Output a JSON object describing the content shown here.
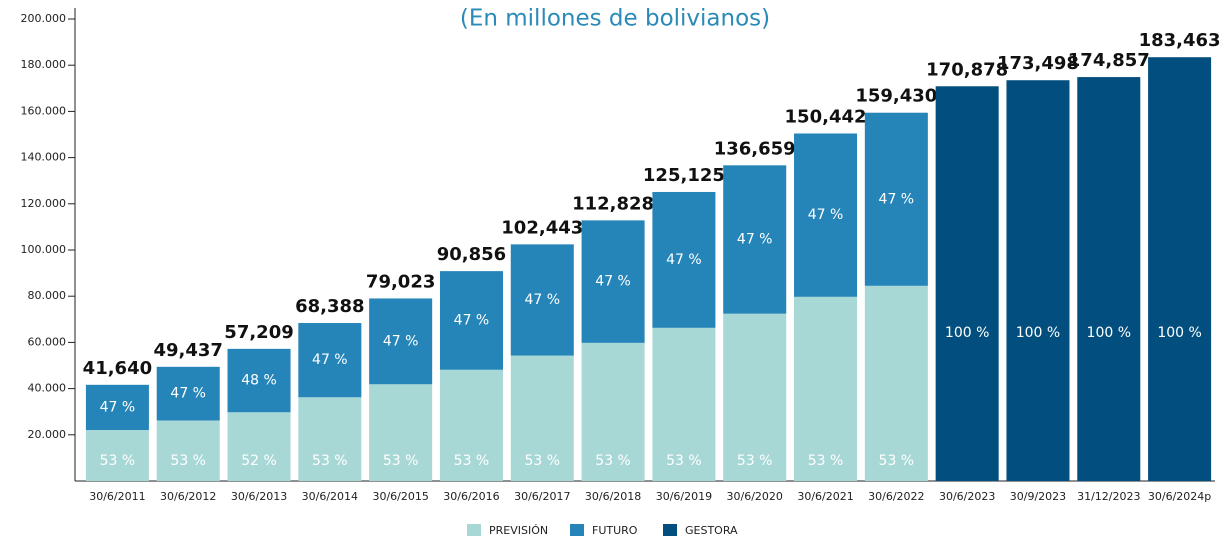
{
  "chart_data": {
    "type": "stacked_bar",
    "subtitle": "(En millones de bolivianos)",
    "categories": [
      "30/6/2011",
      "30/6/2012",
      "30/6/2013",
      "30/6/2014",
      "30/6/2015",
      "30/6/2016",
      "30/6/2017",
      "30/6/2018",
      "30/6/2019",
      "30/6/2020",
      "30/6/2021",
      "30/6/2022",
      "30/6/2023",
      "30/9/2023",
      "31/12/2023",
      "30/6/2024p"
    ],
    "series": [
      {
        "name": "PREVISIÓN",
        "color": "#a8d8d6",
        "values": [
          22069,
          26202,
          29749,
          36246,
          41882,
          48154,
          54295,
          59799,
          66316,
          72429,
          79734,
          84498,
          null,
          null,
          null,
          null
        ],
        "share_labels": [
          "53 %",
          "53 %",
          "52 %",
          "53 %",
          "53 %",
          "53 %",
          "53 %",
          "53 %",
          "53 %",
          "53 %",
          "53 %",
          "53 %",
          null,
          null,
          null,
          null
        ]
      },
      {
        "name": "FUTURO",
        "color": "#2585b8",
        "values": [
          19571,
          23235,
          27460,
          32142,
          37141,
          42702,
          48148,
          53029,
          58809,
          64230,
          70708,
          74932,
          null,
          null,
          null,
          null
        ],
        "share_labels": [
          "47 %",
          "47 %",
          "48 %",
          "47 %",
          "47 %",
          "47 %",
          "47 %",
          "47 %",
          "47 %",
          "47 %",
          "47 %",
          "47 %",
          null,
          null,
          null,
          null
        ]
      },
      {
        "name": "GESTORA",
        "color": "#024f7f",
        "values": [
          null,
          null,
          null,
          null,
          null,
          null,
          null,
          null,
          null,
          null,
          null,
          null,
          170878,
          173498,
          174857,
          183463
        ],
        "share_labels": [
          null,
          null,
          null,
          null,
          null,
          null,
          null,
          null,
          null,
          null,
          null,
          null,
          "100 %",
          "100 %",
          "100 %",
          "100 %"
        ]
      }
    ],
    "totals": [
      41640,
      49437,
      57209,
      68388,
      79023,
      90856,
      102443,
      112828,
      125125,
      136659,
      150442,
      159430,
      170878,
      173498,
      174857,
      183463
    ],
    "total_labels": [
      "41,640",
      "49,437",
      "57,209",
      "68,388",
      "79,023",
      "90,856",
      "102,443",
      "112,828",
      "125,125",
      "136,659",
      "150,442",
      "159,430",
      "170,878",
      "173,498",
      "174,857",
      "183,463"
    ],
    "ylim": [
      0,
      200000
    ],
    "yticks": [
      {
        "value": 20000,
        "label": "20.000"
      },
      {
        "value": 40000,
        "label": "40.000"
      },
      {
        "value": 60000,
        "label": "60.000"
      },
      {
        "value": 80000,
        "label": "80.000"
      },
      {
        "value": 100000,
        "label": "100.000"
      },
      {
        "value": 120000,
        "label": "120.000"
      },
      {
        "value": 140000,
        "label": "140.000"
      },
      {
        "value": 160000,
        "label": "160.000"
      },
      {
        "value": 180000,
        "label": "180.000"
      },
      {
        "value": 200000,
        "label": "200.000"
      }
    ],
    "legend": "bottom"
  }
}
